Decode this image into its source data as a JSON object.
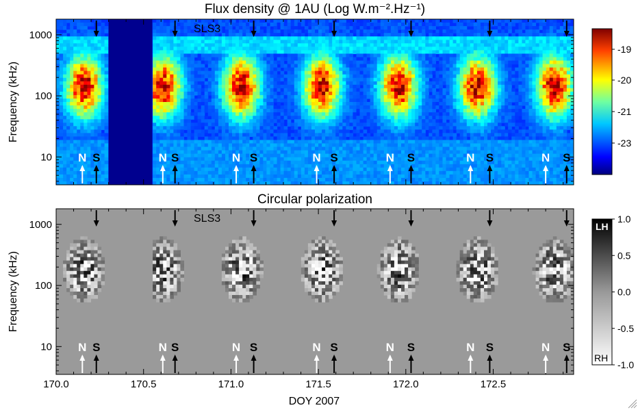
{
  "chart_data": [
    {
      "type": "heatmap",
      "title": "Flux density @ 1AU (Log W.m⁻².Hz⁻¹)",
      "ylabel": "Frequency (kHz)",
      "yscale": "log",
      "ylim": [
        3.5,
        1800
      ],
      "xlim": [
        170.0,
        172.96
      ],
      "yticks": [
        "1000",
        "100",
        "10"
      ],
      "annotation": "SLS3",
      "colorscale": "jet",
      "colorbar_ticks": [
        "-19",
        "-20",
        "-21",
        "-23"
      ],
      "data_gap": [
        170.3,
        170.55
      ],
      "markers": [
        {
          "label": "N",
          "x": 170.15,
          "color": "white"
        },
        {
          "label": "S",
          "x": 170.23,
          "color": "black"
        },
        {
          "label": "N",
          "x": 170.61,
          "color": "white"
        },
        {
          "label": "S",
          "x": 170.68,
          "color": "black"
        },
        {
          "label": "N",
          "x": 171.03,
          "color": "white"
        },
        {
          "label": "S",
          "x": 171.13,
          "color": "black"
        },
        {
          "label": "N",
          "x": 171.49,
          "color": "white"
        },
        {
          "label": "S",
          "x": 171.59,
          "color": "black"
        },
        {
          "label": "N",
          "x": 171.91,
          "color": "white"
        },
        {
          "label": "S",
          "x": 172.03,
          "color": "black"
        },
        {
          "label": "N",
          "x": 172.37,
          "color": "white"
        },
        {
          "label": "S",
          "x": 172.48,
          "color": "black"
        },
        {
          "label": "N",
          "x": 172.8,
          "color": "white"
        },
        {
          "label": "S",
          "x": 172.92,
          "color": "black"
        }
      ],
      "top_arrows": [
        170.23,
        170.68,
        171.13,
        171.59,
        172.03,
        172.48,
        172.92
      ]
    },
    {
      "type": "heatmap",
      "title": "Circular polarization",
      "ylabel": "Frequency (kHz)",
      "xlabel": "DOY 2007",
      "yscale": "log",
      "ylim": [
        3.5,
        1800
      ],
      "xlim": [
        170.0,
        172.96
      ],
      "xticks": [
        "170.0",
        "170.5",
        "171.0",
        "171.5",
        "172.0",
        "172.5"
      ],
      "yticks": [
        "1000",
        "100",
        "10"
      ],
      "annotation": "SLS3",
      "colorscale": "gray",
      "colorbar_ticks": [
        "1.0",
        "0.5",
        "0.0",
        "-0.5",
        "-1.0"
      ],
      "colorbar_labels": {
        "top": "LH",
        "bottom": "RH"
      },
      "clim": [
        -1.0,
        1.0
      ]
    }
  ]
}
